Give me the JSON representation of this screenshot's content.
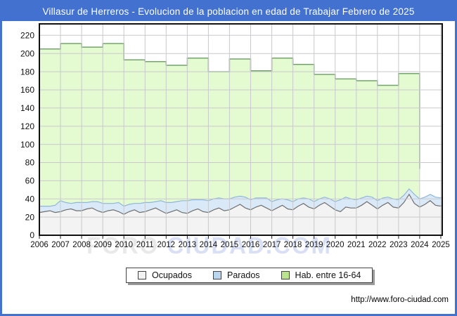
{
  "window": {
    "title": "Villasur de Herreros - Evolucion de la poblacion en edad de Trabajar Febrero de 2025",
    "title_bar_color": "#4271cf",
    "frame_border_color": "#4271cf",
    "url": "http://www.foro-ciudad.com",
    "watermark_part1": "FORO",
    "watermark_part2": "CIUDAD.COM"
  },
  "legend": {
    "items": [
      {
        "label": "Ocupados",
        "color": "#f2f2f2"
      },
      {
        "label": "Parados",
        "color": "#b9d5ef"
      },
      {
        "label": "Hab. entre 16-64",
        "color": "#bce48c"
      }
    ]
  },
  "chart_data": {
    "type": "area",
    "title": "Villasur de Herreros - Evolucion de la poblacion en edad de Trabajar Febrero de 2025",
    "xlabel": "",
    "ylabel": "",
    "x_ticks": [
      2006,
      2007,
      2008,
      2009,
      2010,
      2011,
      2012,
      2013,
      2014,
      2015,
      2016,
      2017,
      2018,
      2019,
      2020,
      2021,
      2022,
      2023,
      2024,
      2025
    ],
    "y_ticks": [
      0,
      20,
      40,
      60,
      80,
      100,
      120,
      140,
      160,
      180,
      200,
      220
    ],
    "x_range": [
      2006,
      2025.1
    ],
    "y_range": [
      0,
      232
    ],
    "grid": true,
    "legend_position": "bottom",
    "colors": {
      "grid": "#c9c9cd",
      "plot_border": "#111111",
      "habitantes_fill": "#e4fbd2",
      "habitantes_line": "#74a46c",
      "parados_fill": "#d9e9f8",
      "parados_line": "#8fb6da",
      "ocupados_fill": "#f3f3f3",
      "ocupados_line": "#6f6f6f"
    },
    "series": [
      {
        "name": "Hab. entre 16-64",
        "style": "step-area-annual",
        "years": [
          2006,
          2007,
          2008,
          2009,
          2010,
          2011,
          2012,
          2013,
          2014,
          2015,
          2016,
          2017,
          2018,
          2019,
          2020,
          2021,
          2022,
          2023
        ],
        "values": [
          205,
          211,
          207,
          211,
          193,
          191,
          187,
          195,
          180,
          194,
          181,
          195,
          188,
          177,
          172,
          170,
          165,
          178
        ],
        "ends_at_x": 2024.0,
        "end_edge_drop_to": 73
      },
      {
        "name": "Parados",
        "style": "band-stacked-on-ocupados",
        "x": [
          2006,
          2006.25,
          2006.5,
          2006.75,
          2007,
          2007.25,
          2007.5,
          2007.75,
          2008,
          2008.25,
          2008.5,
          2008.75,
          2009,
          2009.25,
          2009.5,
          2009.75,
          2010,
          2010.25,
          2010.5,
          2010.75,
          2011,
          2011.25,
          2011.5,
          2011.75,
          2012,
          2012.25,
          2012.5,
          2012.75,
          2013,
          2013.25,
          2013.5,
          2013.75,
          2014,
          2014.25,
          2014.5,
          2014.75,
          2015,
          2015.25,
          2015.5,
          2015.75,
          2016,
          2016.25,
          2016.5,
          2016.75,
          2017,
          2017.25,
          2017.5,
          2017.75,
          2018,
          2018.25,
          2018.5,
          2018.75,
          2019,
          2019.25,
          2019.5,
          2019.75,
          2020,
          2020.25,
          2020.5,
          2020.75,
          2021,
          2021.25,
          2021.5,
          2021.75,
          2022,
          2022.25,
          2022.5,
          2022.75,
          2023,
          2023.25,
          2023.5,
          2023.75,
          2024,
          2024.25,
          2024.5,
          2024.75,
          2025,
          2025.08
        ],
        "values": [
          7,
          6,
          5,
          8,
          12,
          8,
          6,
          9,
          9,
          7,
          7,
          10,
          10,
          8,
          7,
          10,
          9,
          8,
          7,
          10,
          10,
          8,
          7,
          11,
          12,
          10,
          9,
          13,
          14,
          12,
          10,
          13,
          13,
          12,
          11,
          13,
          12,
          11,
          9,
          12,
          11,
          10,
          8,
          11,
          10,
          9,
          7,
          10,
          9,
          8,
          6,
          9,
          8,
          7,
          6,
          8,
          9,
          13,
          11,
          10,
          9,
          8,
          6,
          9,
          9,
          8,
          6,
          9,
          9,
          8,
          6,
          10,
          9,
          8,
          7,
          9,
          9,
          9
        ]
      },
      {
        "name": "Ocupados",
        "style": "area",
        "x": [
          2006,
          2006.25,
          2006.5,
          2006.75,
          2007,
          2007.25,
          2007.5,
          2007.75,
          2008,
          2008.25,
          2008.5,
          2008.75,
          2009,
          2009.25,
          2009.5,
          2009.75,
          2010,
          2010.25,
          2010.5,
          2010.75,
          2011,
          2011.25,
          2011.5,
          2011.75,
          2012,
          2012.25,
          2012.5,
          2012.75,
          2013,
          2013.25,
          2013.5,
          2013.75,
          2014,
          2014.25,
          2014.5,
          2014.75,
          2015,
          2015.25,
          2015.5,
          2015.75,
          2016,
          2016.25,
          2016.5,
          2016.75,
          2017,
          2017.25,
          2017.5,
          2017.75,
          2018,
          2018.25,
          2018.5,
          2018.75,
          2019,
          2019.25,
          2019.5,
          2019.75,
          2020,
          2020.25,
          2020.5,
          2020.75,
          2021,
          2021.25,
          2021.5,
          2021.75,
          2022,
          2022.25,
          2022.5,
          2022.75,
          2023,
          2023.25,
          2023.5,
          2023.75,
          2024,
          2024.25,
          2024.5,
          2024.75,
          2025,
          2025.08
        ],
        "values": [
          25,
          26,
          27,
          25,
          26,
          28,
          29,
          27,
          27,
          29,
          30,
          27,
          25,
          27,
          28,
          26,
          23,
          26,
          28,
          25,
          26,
          28,
          30,
          27,
          24,
          26,
          28,
          25,
          24,
          27,
          29,
          26,
          25,
          28,
          30,
          27,
          28,
          31,
          34,
          30,
          28,
          31,
          33,
          30,
          27,
          30,
          33,
          29,
          28,
          32,
          35,
          31,
          29,
          33,
          36,
          32,
          28,
          26,
          31,
          30,
          30,
          33,
          37,
          33,
          29,
          33,
          36,
          31,
          30,
          36,
          45,
          35,
          31,
          34,
          38,
          33,
          32,
          33
        ]
      }
    ]
  }
}
